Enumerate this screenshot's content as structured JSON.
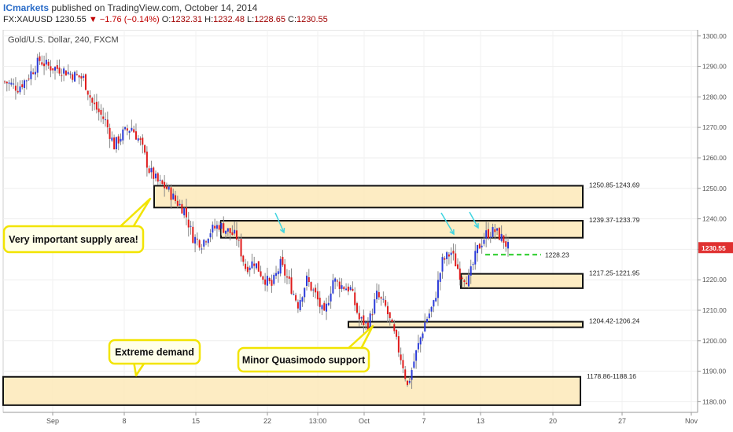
{
  "header": {
    "brand": "ICmarkets",
    "published": " published on TradingView.com, October 14, 2014",
    "symbol": "FX:XAUUSD",
    "last": "1230.55",
    "change": "−1.76 (−0.14%)",
    "open_label": "O:",
    "open": "1232.31",
    "high_label": "H:",
    "high": "1232.48",
    "low_label": "L:",
    "low": "1228.65",
    "close_label": "C:",
    "close": "1230.55"
  },
  "chart_data": {
    "type": "candlestick",
    "title": "Gold/U.S. Dollar, 240, FXCM",
    "ylim": [
      1176.5,
      1302
    ],
    "y_ticks": [
      1180,
      1190,
      1200,
      1210,
      1220,
      1230,
      1240,
      1250,
      1260,
      1270,
      1280,
      1290,
      1300
    ],
    "y_tick_labels": [
      "1180.00",
      "1190.00",
      "1200.00",
      "1210.00",
      "1220.00",
      "1230.00",
      "1240.00",
      "1250.00",
      "1260.00",
      "1270.00",
      "1280.00",
      "1290.00",
      "1300.00"
    ],
    "x_ticks": [
      "Sep",
      "8",
      "15",
      "22",
      "13:00",
      "Oct",
      "7",
      "13",
      "20",
      "27",
      "Nov"
    ],
    "last_price": "1230.55",
    "price_path": [
      {
        "t": 0,
        "p": 1285
      },
      {
        "t": 6,
        "p": 1283
      },
      {
        "t": 10,
        "p": 1286
      },
      {
        "t": 16,
        "p": 1292
      },
      {
        "t": 20,
        "p": 1290
      },
      {
        "t": 26,
        "p": 1289
      },
      {
        "t": 32,
        "p": 1287
      },
      {
        "t": 36,
        "p": 1286
      },
      {
        "t": 40,
        "p": 1278
      },
      {
        "t": 46,
        "p": 1272
      },
      {
        "t": 50,
        "p": 1264
      },
      {
        "t": 54,
        "p": 1268
      },
      {
        "t": 58,
        "p": 1270
      },
      {
        "t": 62,
        "p": 1265
      },
      {
        "t": 66,
        "p": 1256
      },
      {
        "t": 70,
        "p": 1252
      },
      {
        "t": 74,
        "p": 1250
      },
      {
        "t": 78,
        "p": 1246
      },
      {
        "t": 82,
        "p": 1243
      },
      {
        "t": 86,
        "p": 1234
      },
      {
        "t": 90,
        "p": 1232
      },
      {
        "t": 94,
        "p": 1236
      },
      {
        "t": 98,
        "p": 1238
      },
      {
        "t": 102,
        "p": 1236
      },
      {
        "t": 106,
        "p": 1234
      },
      {
        "t": 110,
        "p": 1224
      },
      {
        "t": 114,
        "p": 1226
      },
      {
        "t": 118,
        "p": 1221
      },
      {
        "t": 122,
        "p": 1218
      },
      {
        "t": 126,
        "p": 1225
      },
      {
        "t": 130,
        "p": 1219
      },
      {
        "t": 134,
        "p": 1212
      },
      {
        "t": 138,
        "p": 1220
      },
      {
        "t": 142,
        "p": 1215
      },
      {
        "t": 146,
        "p": 1208
      },
      {
        "t": 150,
        "p": 1220
      },
      {
        "t": 154,
        "p": 1218
      },
      {
        "t": 158,
        "p": 1217
      },
      {
        "t": 162,
        "p": 1207
      },
      {
        "t": 166,
        "p": 1205
      },
      {
        "t": 170,
        "p": 1215
      },
      {
        "t": 174,
        "p": 1211
      },
      {
        "t": 178,
        "p": 1202
      },
      {
        "t": 182,
        "p": 1192
      },
      {
        "t": 184,
        "p": 1185
      },
      {
        "t": 188,
        "p": 1196
      },
      {
        "t": 192,
        "p": 1206
      },
      {
        "t": 196,
        "p": 1212
      },
      {
        "t": 200,
        "p": 1226
      },
      {
        "t": 204,
        "p": 1229
      },
      {
        "t": 208,
        "p": 1222
      },
      {
        "t": 212,
        "p": 1220
      },
      {
        "t": 216,
        "p": 1230
      },
      {
        "t": 220,
        "p": 1235
      },
      {
        "t": 224,
        "p": 1236
      },
      {
        "t": 228,
        "p": 1233
      },
      {
        "t": 230,
        "p": 1230.55
      }
    ],
    "zones": [
      {
        "name": "supply-zone-1250",
        "label": "1250.85-1243.69",
        "high": 1250.85,
        "low": 1243.69
      },
      {
        "name": "supply-zone-1239",
        "label": "1239.37-1233.79",
        "high": 1239.37,
        "low": 1233.79
      },
      {
        "name": "demand-zone-1217",
        "label": "1217.25-1221.95",
        "high": 1221.95,
        "low": 1217.25
      },
      {
        "name": "demand-zone-1204",
        "label": "1204.42-1206.24",
        "high": 1206.24,
        "low": 1204.42
      },
      {
        "name": "demand-zone-1178",
        "label": "1178.86-1188.16",
        "high": 1188.16,
        "low": 1178.86
      }
    ],
    "level_line": {
      "label": "1228.23",
      "value": 1228.23
    },
    "annotations": [
      "Very important supply area!",
      "Minor Quasimodo support",
      "Extreme demand"
    ]
  }
}
